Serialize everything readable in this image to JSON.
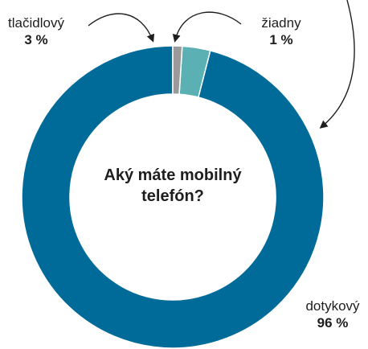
{
  "chart_data": {
    "type": "pie",
    "title": "Aký máte mobilný telefón?",
    "slices": [
      {
        "label": "dotykový",
        "value": 96,
        "value_label": "96 %",
        "color": "#006b99"
      },
      {
        "label": "tlačidlový",
        "value": 3,
        "value_label": "3 %",
        "color": "#5bb0b4"
      },
      {
        "label": "žiadny",
        "value": 1,
        "value_label": "1 %",
        "color": "#9a9a9a"
      }
    ],
    "donut": true,
    "legend": "direct labels with arrows"
  }
}
